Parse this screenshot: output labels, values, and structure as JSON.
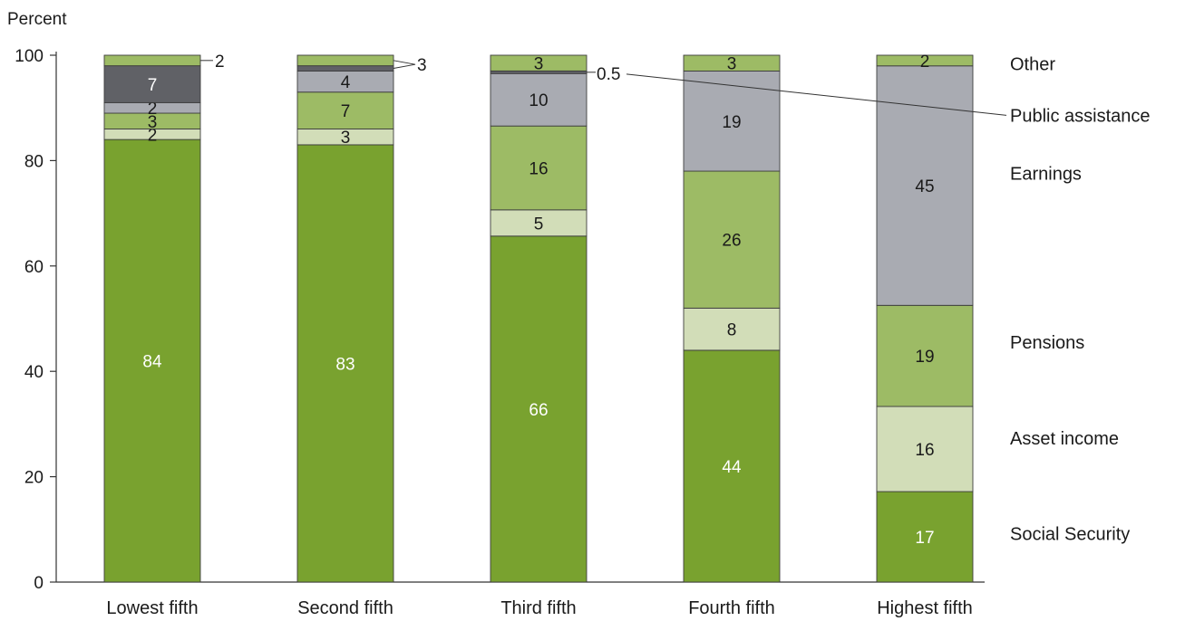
{
  "chart_data": {
    "type": "bar",
    "stacked": true,
    "ylabel": "Percent",
    "ylim": [
      0,
      100
    ],
    "yticks": [
      0,
      20,
      40,
      60,
      80,
      100
    ],
    "categories": [
      "Lowest fifth",
      "Second fifth",
      "Third fifth",
      "Fourth fifth",
      "Highest fifth"
    ],
    "series": [
      {
        "name": "Social Security",
        "color": "#79a22f",
        "label_color": "#ffffff",
        "values": [
          84,
          83,
          66,
          44,
          17
        ],
        "labels": [
          "84",
          "83",
          "66",
          "44",
          "17"
        ]
      },
      {
        "name": "Asset income",
        "color": "#d2ddb8",
        "label_color": "#1a1a1a",
        "values": [
          2,
          3,
          5,
          8,
          16
        ],
        "labels": [
          "2",
          "3",
          "5",
          "8",
          "16"
        ]
      },
      {
        "name": "Pensions",
        "color": "#9dbb65",
        "label_color": "#1a1a1a",
        "values": [
          3,
          7,
          16,
          26,
          19
        ],
        "labels": [
          "3",
          "7",
          "16",
          "26",
          "19"
        ]
      },
      {
        "name": "Earnings",
        "color": "#a9abb2",
        "label_color": "#1a1a1a",
        "values": [
          2,
          4,
          10,
          19,
          45
        ],
        "labels": [
          "2",
          "4",
          "10",
          "19",
          "45"
        ]
      },
      {
        "name": "Public assistance",
        "color": "#606166",
        "label_color": "#ffffff",
        "values": [
          7,
          1,
          0.5,
          0,
          0
        ],
        "labels": [
          "7",
          "",
          "",
          "",
          ""
        ]
      },
      {
        "name": "Other",
        "color": "#9dbb65",
        "label_color": "#1a1a1a",
        "values": [
          2,
          2,
          3,
          3,
          2
        ],
        "labels": [
          "",
          "",
          "3",
          "3",
          "2"
        ]
      }
    ],
    "callouts": [
      {
        "category": 0,
        "text": "2"
      },
      {
        "category": 1,
        "text": "3"
      },
      {
        "category": 2,
        "text": "0.5"
      }
    ],
    "legend_placement": "right",
    "legend_order": [
      "Other",
      "Public assistance",
      "Earnings",
      "Pensions",
      "Asset income",
      "Social Security"
    ]
  }
}
